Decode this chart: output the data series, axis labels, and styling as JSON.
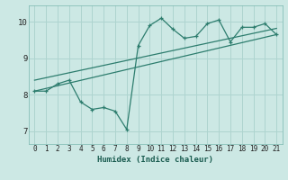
{
  "title": "",
  "xlabel": "Humidex (Indice chaleur)",
  "xlim": [
    -0.5,
    21.5
  ],
  "ylim": [
    6.65,
    10.45
  ],
  "xticks": [
    0,
    1,
    2,
    3,
    4,
    5,
    6,
    7,
    8,
    9,
    10,
    11,
    12,
    13,
    14,
    15,
    16,
    17,
    18,
    19,
    20,
    21
  ],
  "yticks": [
    7,
    8,
    9,
    10
  ],
  "bg_color": "#cce8e4",
  "grid_color": "#aed4cf",
  "line_color": "#2d7d6e",
  "data_x": [
    0,
    1,
    2,
    3,
    4,
    5,
    6,
    7,
    8,
    9,
    10,
    11,
    12,
    13,
    14,
    15,
    16,
    17,
    18,
    19,
    20,
    21
  ],
  "data_y": [
    8.1,
    8.1,
    8.3,
    8.4,
    7.8,
    7.6,
    7.65,
    7.55,
    7.05,
    9.35,
    9.9,
    10.1,
    9.8,
    9.55,
    9.6,
    9.95,
    10.05,
    9.45,
    9.85,
    9.85,
    9.95,
    9.65
  ],
  "trend1_x": [
    0,
    21
  ],
  "trend1_y": [
    8.1,
    9.65
  ],
  "trend2_x": [
    0,
    21
  ],
  "trend2_y": [
    8.4,
    9.82
  ]
}
